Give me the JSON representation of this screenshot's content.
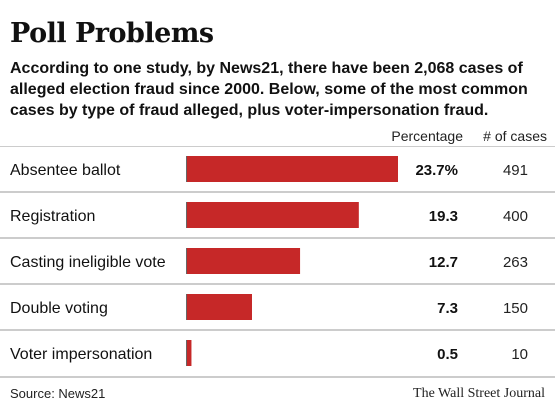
{
  "header": {
    "title": "Poll Problems",
    "subtitle": "According to one study, by News21, there have been 2,068 cases of alleged election fraud since 2000. Below, some of the most common cases by type of fraud alleged, plus voter-impersonation fraud."
  },
  "columns": {
    "percentage": "Percentage",
    "cases": "# of cases"
  },
  "chart_data": {
    "type": "bar",
    "orientation": "horizontal",
    "categories": [
      "Absentee ballot",
      "Registration",
      "Casting ineligible vote",
      "Double voting",
      "Voter impersonation"
    ],
    "values": [
      23.7,
      19.3,
      12.7,
      7.3,
      0.5
    ],
    "value_labels": [
      "23.7%",
      "19.3",
      "12.7",
      "7.3",
      "0.5"
    ],
    "cases": [
      491,
      400,
      263,
      150,
      10
    ],
    "bar_color": "#c62828",
    "grid": false,
    "xlim": [
      0,
      23.7
    ]
  },
  "footer": {
    "source": "Source: News21",
    "credit": "The Wall Street Journal"
  }
}
